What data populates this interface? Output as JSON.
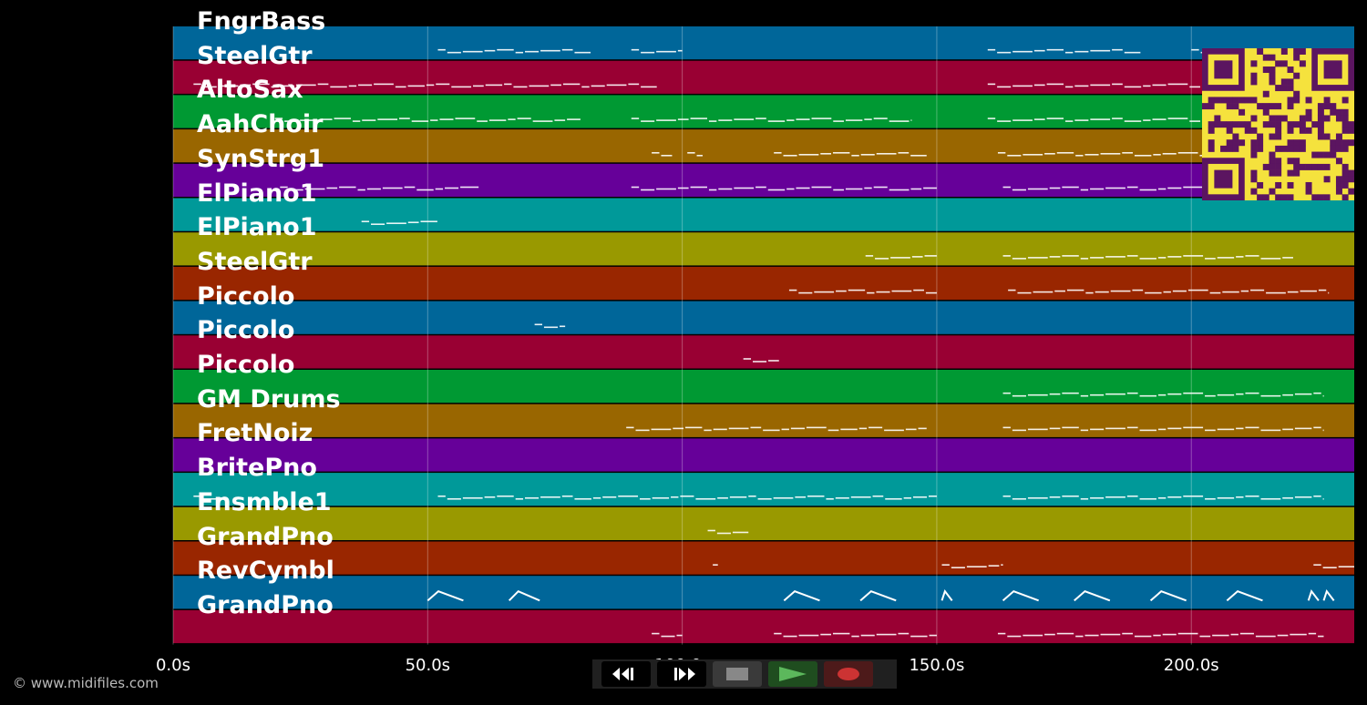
{
  "tracks": [
    {
      "label": "FngrBass",
      "color": "#006699"
    },
    {
      "label": "SteelGtr",
      "color": "#990033"
    },
    {
      "label": "AltoSax",
      "color": "#009933"
    },
    {
      "label": "AahChoir",
      "color": "#996600"
    },
    {
      "label": "SynStrg1",
      "color": "#660099"
    },
    {
      "label": "ElPiano1",
      "color": "#009999"
    },
    {
      "label": "ElPiano1",
      "color": "#999900"
    },
    {
      "label": "SteelGtr",
      "color": "#992600"
    },
    {
      "label": "Piccolo",
      "color": "#006699"
    },
    {
      "label": "Piccolo",
      "color": "#990033"
    },
    {
      "label": "Piccolo",
      "color": "#009933"
    },
    {
      "label": "GM Drums",
      "color": "#996600"
    },
    {
      "label": "FretNoiz",
      "color": "#660099"
    },
    {
      "label": "BritePno",
      "color": "#009999"
    },
    {
      "label": "Ensmble1",
      "color": "#999900"
    },
    {
      "label": "GrandPno",
      "color": "#992600"
    },
    {
      "label": "RevCymbl",
      "color": "#006699"
    },
    {
      "label": "GrandPno",
      "color": "#990033"
    }
  ],
  "axis": {
    "ticks": [
      {
        "value": 0,
        "label": "0.0s"
      },
      {
        "value": 50,
        "label": "50.0s"
      },
      {
        "value": 100,
        "label": "100.0s"
      },
      {
        "value": 150,
        "label": "150.0s"
      },
      {
        "value": 200,
        "label": "200.0s"
      }
    ],
    "max_seconds": 232
  },
  "copyright": "© www.midifiles.com",
  "transport": {
    "buttons": [
      {
        "name": "rewind-button",
        "icon": "rewind-icon",
        "color": "#000000"
      },
      {
        "name": "fast-forward-button",
        "icon": "fast-forward-icon",
        "color": "#000000"
      },
      {
        "name": "stop-button",
        "icon": "stop-icon",
        "color": "#3a3a3a"
      },
      {
        "name": "play-button",
        "icon": "play-icon",
        "color": "#1f4d1f"
      },
      {
        "name": "record-button",
        "icon": "record-icon",
        "color": "#4d1a1a"
      }
    ]
  },
  "qr_code": {
    "icon": "qr-code-icon",
    "fg": "#5b1560",
    "bg": "#f5e23d"
  }
}
